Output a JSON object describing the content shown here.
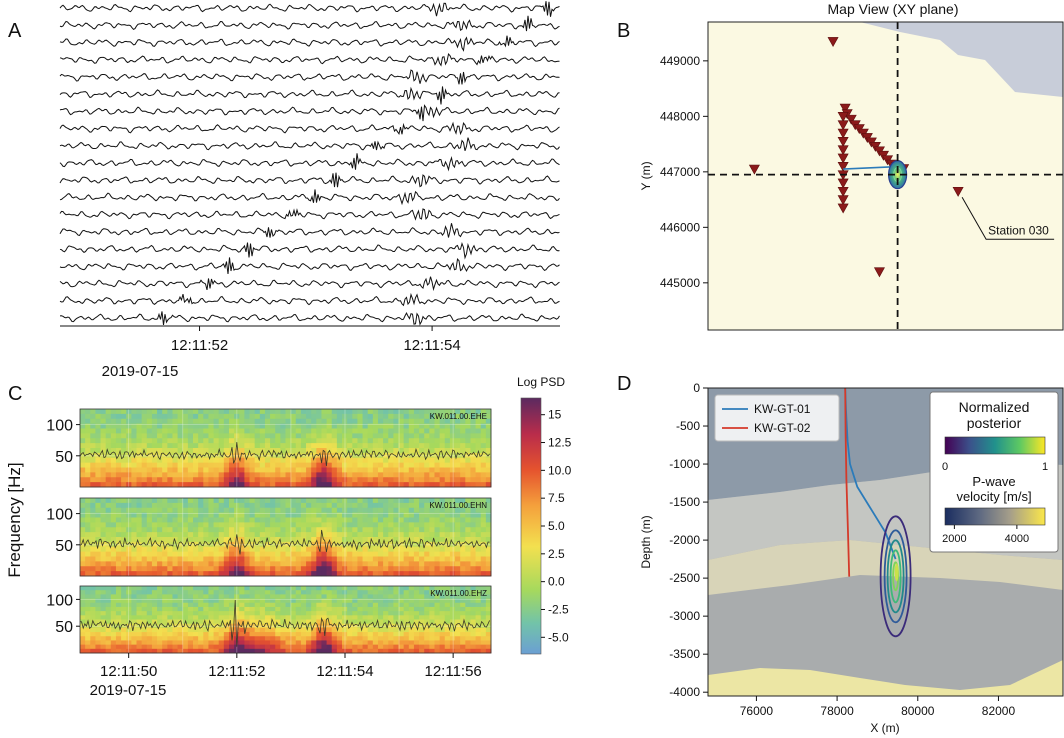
{
  "chart_data": [
    {
      "panel": "A",
      "type": "line",
      "description_label": "A",
      "n_traces": 19,
      "x_ticks": [
        "12:11:52",
        "12:11:54"
      ],
      "x_date": "2019-07-15",
      "x_tick_seconds": [
        52,
        54
      ],
      "x_range_seconds": [
        50.8,
        55.1
      ]
    },
    {
      "panel": "B",
      "type": "scatter",
      "description_label": "B",
      "title": "Map View (XY plane)",
      "ylabel": "Y (m)",
      "y_ticks": [
        "445000",
        "446000",
        "447000",
        "448000",
        "449000"
      ],
      "y_tick_values": [
        445000,
        446000,
        447000,
        448000,
        449000
      ],
      "xlim": [
        74800,
        83600
      ],
      "ylim": [
        444150,
        449700
      ],
      "epicenter": {
        "x": 79500,
        "y": 446950
      },
      "annotation": "Station 030",
      "annotated_station": {
        "x": 81000,
        "y": 446650
      },
      "stations": [
        {
          "x": 75950,
          "y": 447050
        },
        {
          "x": 77900,
          "y": 449350
        },
        {
          "x": 78200,
          "y": 448150
        },
        {
          "x": 78250,
          "y": 448050
        },
        {
          "x": 78350,
          "y": 447950
        },
        {
          "x": 78450,
          "y": 447850
        },
        {
          "x": 78550,
          "y": 447780
        },
        {
          "x": 78650,
          "y": 447700
        },
        {
          "x": 78750,
          "y": 447620
        },
        {
          "x": 78850,
          "y": 447540
        },
        {
          "x": 78950,
          "y": 447460
        },
        {
          "x": 79050,
          "y": 447380
        },
        {
          "x": 79150,
          "y": 447300
        },
        {
          "x": 79250,
          "y": 447220
        },
        {
          "x": 79350,
          "y": 447140
        },
        {
          "x": 79480,
          "y": 447100
        },
        {
          "x": 79650,
          "y": 447060
        },
        {
          "x": 78150,
          "y": 448000
        },
        {
          "x": 78150,
          "y": 447850
        },
        {
          "x": 78150,
          "y": 447700
        },
        {
          "x": 78150,
          "y": 447550
        },
        {
          "x": 78150,
          "y": 447400
        },
        {
          "x": 78150,
          "y": 447250
        },
        {
          "x": 78150,
          "y": 447100
        },
        {
          "x": 78150,
          "y": 446950
        },
        {
          "x": 78150,
          "y": 446800
        },
        {
          "x": 78150,
          "y": 446650
        },
        {
          "x": 78150,
          "y": 446500
        },
        {
          "x": 78150,
          "y": 446350
        },
        {
          "x": 79050,
          "y": 445200
        },
        {
          "x": 81000,
          "y": 446650
        }
      ]
    },
    {
      "panel": "C",
      "type": "heatmap",
      "description_label": "C",
      "ylabel": "Frequency [Hz]",
      "y_ticks": [
        "100",
        "50"
      ],
      "y_tick_values": [
        100,
        50
      ],
      "y_range": [
        0,
        125
      ],
      "x_ticks": [
        "12:11:50",
        "12:11:52",
        "12:11:54",
        "12:11:56"
      ],
      "x_tick_seconds": [
        50,
        52,
        54,
        56
      ],
      "x_range_seconds": [
        49.1,
        56.7
      ],
      "x_date": "2019-07-15",
      "channels": [
        "KW.011.00.EHE",
        "KW.011.00.EHN",
        "KW.011.00.EHZ"
      ],
      "colorbar_label": "Log PSD",
      "colorbar_ticks": [
        "15",
        "12.5",
        "10.0",
        "7.5",
        "5.0",
        "2.5",
        "0.0",
        "-2.5",
        "-5.0"
      ],
      "colorbar_values": [
        15,
        12.5,
        10.0,
        7.5,
        5.0,
        2.5,
        0.0,
        -2.5,
        -5.0
      ],
      "colorbar_range": [
        -6.5,
        16.5
      ]
    },
    {
      "panel": "D",
      "type": "line",
      "description_label": "D",
      "xlabel": "X (m)",
      "ylabel": "Depth (m)",
      "x_ticks": [
        "76000",
        "78000",
        "80000",
        "82000"
      ],
      "x_tick_values": [
        76000,
        78000,
        80000,
        82000
      ],
      "y_ticks": [
        "0",
        "-500",
        "-1000",
        "-1500",
        "-2000",
        "-2500",
        "-3000",
        "-3500",
        "-4000"
      ],
      "y_tick_values": [
        0,
        -500,
        -1000,
        -1500,
        -2000,
        -2500,
        -3000,
        -3500,
        -4000
      ],
      "xlim": [
        74800,
        83600
      ],
      "ylim": [
        -4050,
        0
      ],
      "series": [
        {
          "name": "KW-GT-01",
          "color": "#2b7bba",
          "x": [
            78200,
            78220,
            78260,
            78320,
            78500,
            78850,
            79200,
            79450
          ],
          "y": [
            0,
            -300,
            -700,
            -1000,
            -1300,
            -1600,
            -1900,
            -2250
          ]
        },
        {
          "name": "KW-GT-02",
          "color": "#d43a2a",
          "x": [
            78200,
            78210,
            78230,
            78270,
            78300
          ],
          "y": [
            0,
            -600,
            -1200,
            -1900,
            -2480
          ]
        }
      ],
      "hypocenter": {
        "x": 79500,
        "y": -2450
      },
      "legend_box_title": "Normalized posterior",
      "posterior_ticks": [
        "0",
        "1"
      ],
      "velocity_title": "P-wave velocity [m/s]",
      "velocity_ticks": [
        "2000",
        "4000"
      ],
      "velocity_tick_values": [
        2000,
        4000
      ],
      "velocity_range": [
        1700,
        4900
      ]
    }
  ]
}
